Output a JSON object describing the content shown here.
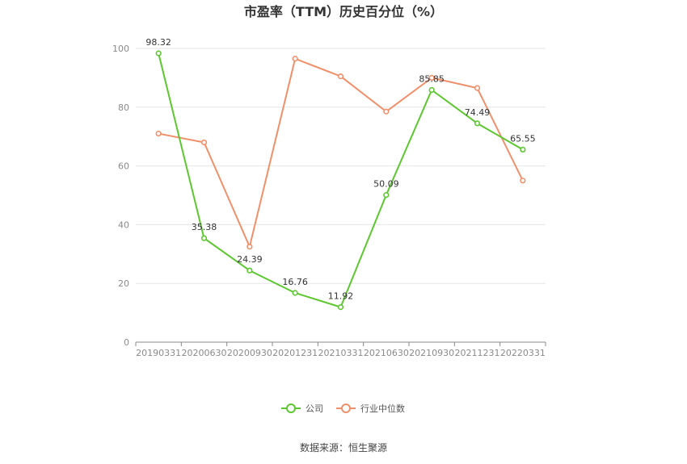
{
  "chart_data": {
    "type": "line",
    "title": "市盈率（TTM）历史百分位（%）",
    "categories": [
      "20190331",
      "20200630",
      "20200930",
      "20201231",
      "20210331",
      "20210630",
      "20210930",
      "20211231",
      "20220331"
    ],
    "ylim": [
      0,
      100
    ],
    "yticks": [
      0,
      20,
      40,
      60,
      80,
      100
    ],
    "grid": true,
    "legend_position": "bottom",
    "series": [
      {
        "name": "公司",
        "color": "#5cc72e",
        "values": [
          98.32,
          35.38,
          24.39,
          16.76,
          11.92,
          50.09,
          85.85,
          74.49,
          65.55
        ],
        "labels": [
          "98.32",
          "35.38",
          "24.39",
          "16.76",
          "11.92",
          "50.09",
          "85.85",
          "74.49",
          "65.55"
        ]
      },
      {
        "name": "行业中位数",
        "color": "#f0906a",
        "values": [
          71.0,
          68.0,
          32.5,
          96.5,
          90.5,
          78.5,
          90.0,
          86.5,
          55.0
        ]
      }
    ]
  },
  "footer": {
    "source": "数据来源：恒生聚源"
  }
}
